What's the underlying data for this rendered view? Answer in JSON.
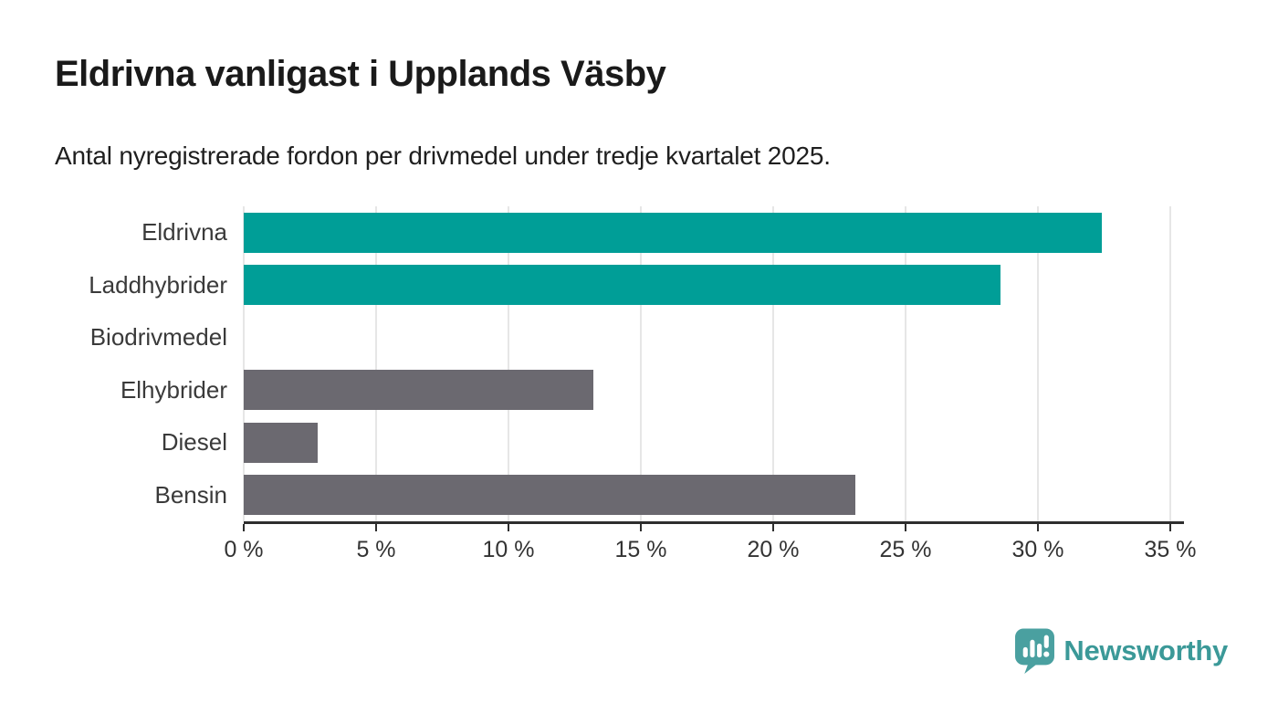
{
  "title": "Eldrivna vanligast i Upplands Väsby",
  "subtitle": "Antal nyregistrerade fordon per drivmedel under tredje kvartalet 2025.",
  "colors": {
    "teal": "#009E97",
    "gray": "#6B6970",
    "title_text": "#1a1a1a",
    "subtitle_text": "#1f1f1f",
    "axis_text": "#3a3a3a",
    "tick_text": "#333333",
    "gridline": "#e6e6e6",
    "axis_line": "#2e2e2e",
    "logo_teal": "#3B9998",
    "logo_icon": "#4AA0A0",
    "background": "#ffffff"
  },
  "chart_data": {
    "type": "bar",
    "orientation": "horizontal",
    "title": "Eldrivna vanligast i Upplands Väsby",
    "subtitle": "Antal nyregistrerade fordon per drivmedel under tredje kvartalet 2025.",
    "categories": [
      "Eldrivna",
      "Laddhybrider",
      "Biodrivmedel",
      "Elhybrider",
      "Diesel",
      "Bensin"
    ],
    "values": [
      32.4,
      28.6,
      0,
      13.2,
      2.8,
      23.1
    ],
    "bar_colors": [
      "#009E97",
      "#009E97",
      "#6B6970",
      "#6B6970",
      "#6B6970",
      "#6B6970"
    ],
    "xlabel": "",
    "ylabel": "",
    "xlim": [
      0,
      35
    ],
    "x_tick_values": [
      0,
      5,
      10,
      15,
      20,
      25,
      30,
      35
    ],
    "x_ticks": [
      "0 %",
      "5 %",
      "10 %",
      "15 %",
      "20 %",
      "25 %",
      "30 %",
      "35 %"
    ],
    "grid": "vertical-gridlines-on",
    "legend": "none"
  },
  "footer": {
    "brand": "Newsworthy",
    "logo_icon": "speech-bubble-bar-chart-icon"
  }
}
